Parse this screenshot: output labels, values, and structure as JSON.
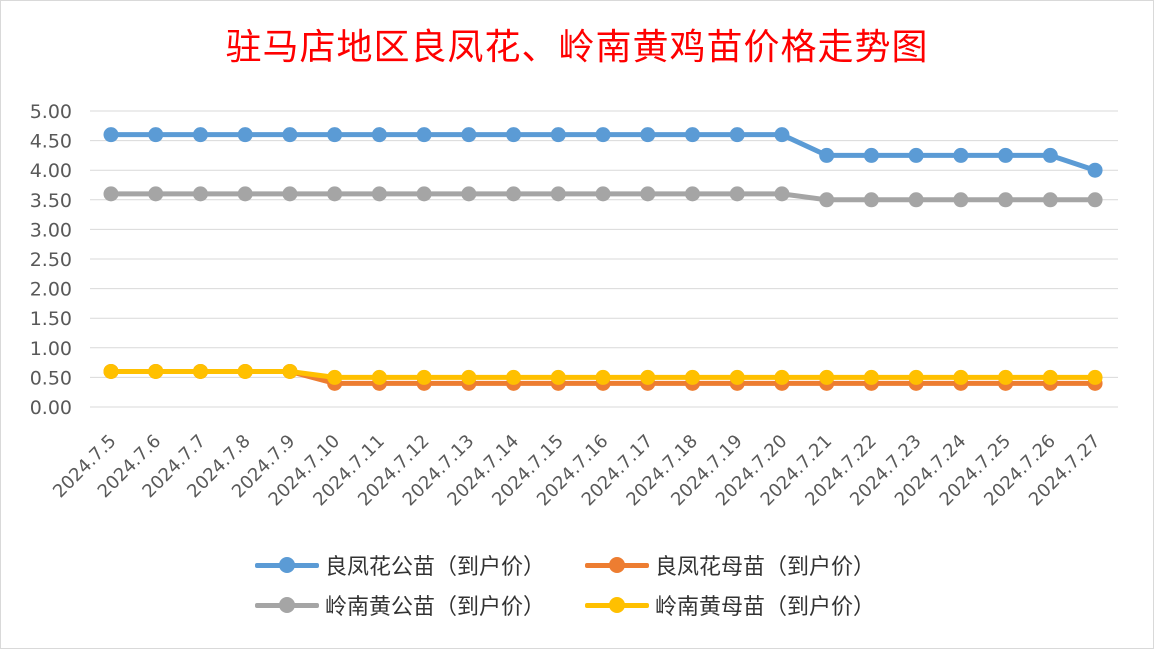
{
  "colors": {
    "title": "#ff0000",
    "grid": "#d9d9d9",
    "axis_text": "#595959",
    "lf_male": "#5b9bd5",
    "lf_female": "#ed7d31",
    "ln_male": "#a5a5a5",
    "ln_female": "#ffc000"
  },
  "chart_data": {
    "type": "line",
    "title": "驻马店地区良凤花、岭南黄鸡苗价格走势图",
    "categories": [
      "2024.7.5",
      "2024.7.6",
      "2024.7.7",
      "2024.7.8",
      "2024.7.9",
      "2024.7.10",
      "2024.7.11",
      "2024.7.12",
      "2024.7.13",
      "2024.7.14",
      "2024.7.15",
      "2024.7.16",
      "2024.7.17",
      "2024.7.18",
      "2024.7.19",
      "2024.7.20",
      "2024.7.21",
      "2024.7.22",
      "2024.7.23",
      "2024.7.24",
      "2024.7.25",
      "2024.7.26",
      "2024.7.27"
    ],
    "y_ticks": [
      "0.00",
      "0.50",
      "1.00",
      "1.50",
      "2.00",
      "2.50",
      "3.00",
      "3.50",
      "4.00",
      "4.50",
      "5.00"
    ],
    "ylim": [
      0,
      5
    ],
    "grid": true,
    "legend_position": "bottom",
    "series": [
      {
        "name": "良凤花公苗（到户价）",
        "color_key": "lf_male",
        "values": [
          4.6,
          4.6,
          4.6,
          4.6,
          4.6,
          4.6,
          4.6,
          4.6,
          4.6,
          4.6,
          4.6,
          4.6,
          4.6,
          4.6,
          4.6,
          4.6,
          4.25,
          4.25,
          4.25,
          4.25,
          4.25,
          4.25,
          4.0
        ]
      },
      {
        "name": "良凤花母苗（到户价）",
        "color_key": "lf_female",
        "values": [
          0.6,
          0.6,
          0.6,
          0.6,
          0.6,
          0.4,
          0.4,
          0.4,
          0.4,
          0.4,
          0.4,
          0.4,
          0.4,
          0.4,
          0.4,
          0.4,
          0.4,
          0.4,
          0.4,
          0.4,
          0.4,
          0.4,
          0.4
        ]
      },
      {
        "name": "岭南黄公苗（到户价）",
        "color_key": "ln_male",
        "values": [
          3.6,
          3.6,
          3.6,
          3.6,
          3.6,
          3.6,
          3.6,
          3.6,
          3.6,
          3.6,
          3.6,
          3.6,
          3.6,
          3.6,
          3.6,
          3.6,
          3.5,
          3.5,
          3.5,
          3.5,
          3.5,
          3.5,
          3.5
        ]
      },
      {
        "name": "岭南黄母苗（到户价）",
        "color_key": "ln_female",
        "values": [
          0.6,
          0.6,
          0.6,
          0.6,
          0.6,
          0.5,
          0.5,
          0.5,
          0.5,
          0.5,
          0.5,
          0.5,
          0.5,
          0.5,
          0.5,
          0.5,
          0.5,
          0.5,
          0.5,
          0.5,
          0.5,
          0.5,
          0.5
        ]
      }
    ],
    "draw_order": [
      0,
      2,
      1,
      3
    ],
    "legend": [
      {
        "label": "良凤花公苗（到户价）",
        "color_key": "lf_male"
      },
      {
        "label": "良凤花母苗（到户价）",
        "color_key": "lf_female"
      },
      {
        "label": "岭南黄公苗（到户价）",
        "color_key": "ln_male"
      },
      {
        "label": "岭南黄母苗（到户价）",
        "color_key": "ln_female"
      }
    ]
  }
}
